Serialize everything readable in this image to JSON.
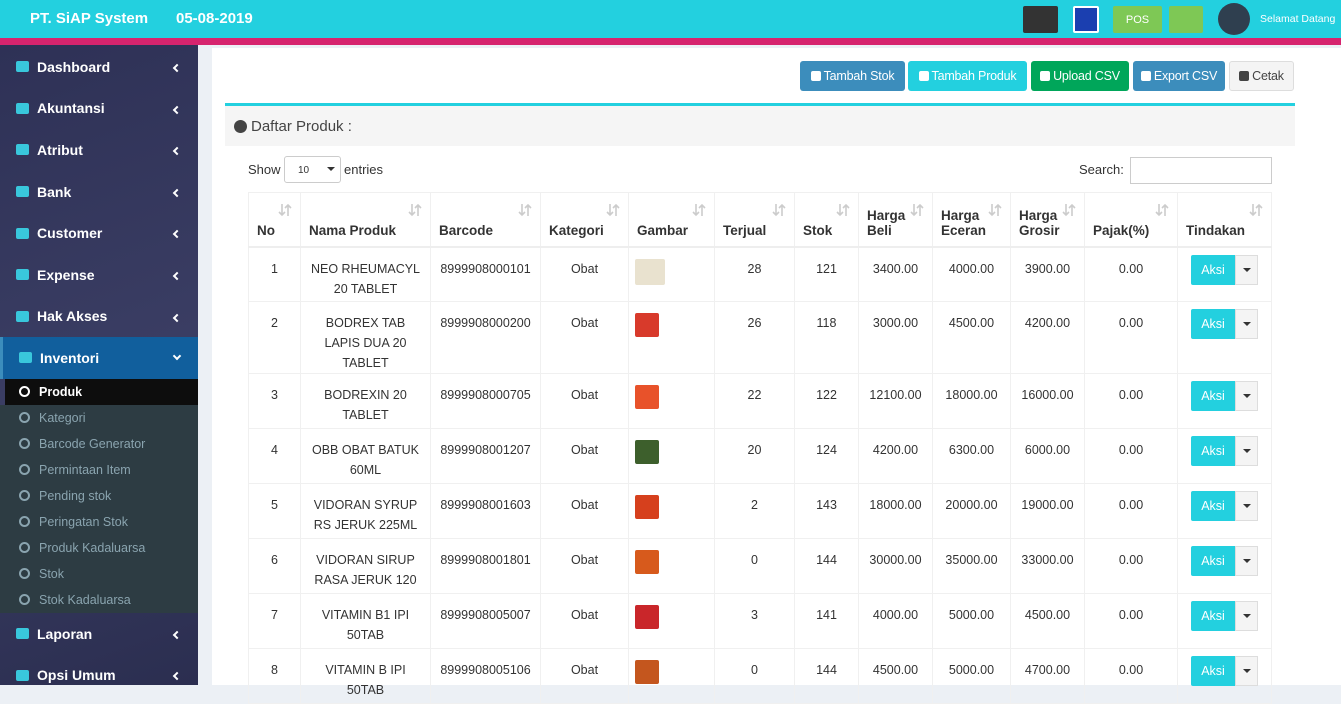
{
  "header": {
    "brand": "PT. SiAP System",
    "date": "05-08-2019",
    "pos": "POS",
    "greeting": "Selamat Datang"
  },
  "sidebar": {
    "menu_top": [
      "Dashboard",
      "Akuntansi",
      "Atribut",
      "Bank",
      "Customer",
      "Expense",
      "Hak Akses",
      "Inventori"
    ],
    "submenu": [
      "Produk",
      "Kategori",
      "Barcode Generator",
      "Permintaan Item",
      "Pending stok",
      "Peringatan Stok",
      "Produk Kadaluarsa",
      "Stok",
      "Stok Kadaluarsa"
    ],
    "menu_bottom": [
      "Laporan",
      "Opsi Umum"
    ]
  },
  "toolbar": {
    "buttons": [
      "Tambah Stok",
      "Tambah Produk",
      "Upload CSV",
      "Export CSV",
      "Cetak"
    ]
  },
  "panel": {
    "title": "Daftar Produk :",
    "show": "Show",
    "entries_value": "10",
    "entries": "entries",
    "search": "Search:"
  },
  "table": {
    "columns": [
      "No",
      "Nama Produk",
      "Barcode",
      "Kategori",
      "Gambar",
      "Terjual",
      "Stok",
      "Harga Beli",
      "Harga Eceran",
      "Harga Grosir",
      "Pajak(%)",
      "Tindakan"
    ],
    "action": "Aksi",
    "rows": [
      [
        "1",
        "NEO RHEUMACYL 20 TABLET",
        "8999908000101",
        "Obat",
        "28",
        "121",
        "3400.00",
        "4000.00",
        "3900.00",
        "0.00"
      ],
      [
        "2",
        "BODREX TAB LAPIS DUA 20 TABLET",
        "8999908000200",
        "Obat",
        "26",
        "118",
        "3000.00",
        "4500.00",
        "4200.00",
        "0.00"
      ],
      [
        "3",
        "BODREXIN 20 TABLET",
        "8999908000705",
        "Obat",
        "22",
        "122",
        "12100.00",
        "18000.00",
        "16000.00",
        "0.00"
      ],
      [
        "4",
        "OBB OBAT BATUK 60ML",
        "8999908001207",
        "Obat",
        "20",
        "124",
        "4200.00",
        "6300.00",
        "6000.00",
        "0.00"
      ],
      [
        "5",
        "VIDORAN SYRUP RS JERUK 225ML",
        "8999908001603",
        "Obat",
        "2",
        "143",
        "18000.00",
        "20000.00",
        "19000.00",
        "0.00"
      ],
      [
        "6",
        "VIDORAN SIRUP RASA JERUK 120",
        "8999908001801",
        "Obat",
        "0",
        "144",
        "30000.00",
        "35000.00",
        "33000.00",
        "0.00"
      ],
      [
        "7",
        "VITAMIN B1 IPI 50TAB",
        "8999908005007",
        "Obat",
        "3",
        "141",
        "4000.00",
        "5000.00",
        "4500.00",
        "0.00"
      ],
      [
        "8",
        "VITAMIN B IPI 50TAB",
        "8999908005106",
        "Obat",
        "0",
        "144",
        "4500.00",
        "5000.00",
        "4700.00",
        "0.00"
      ]
    ]
  }
}
